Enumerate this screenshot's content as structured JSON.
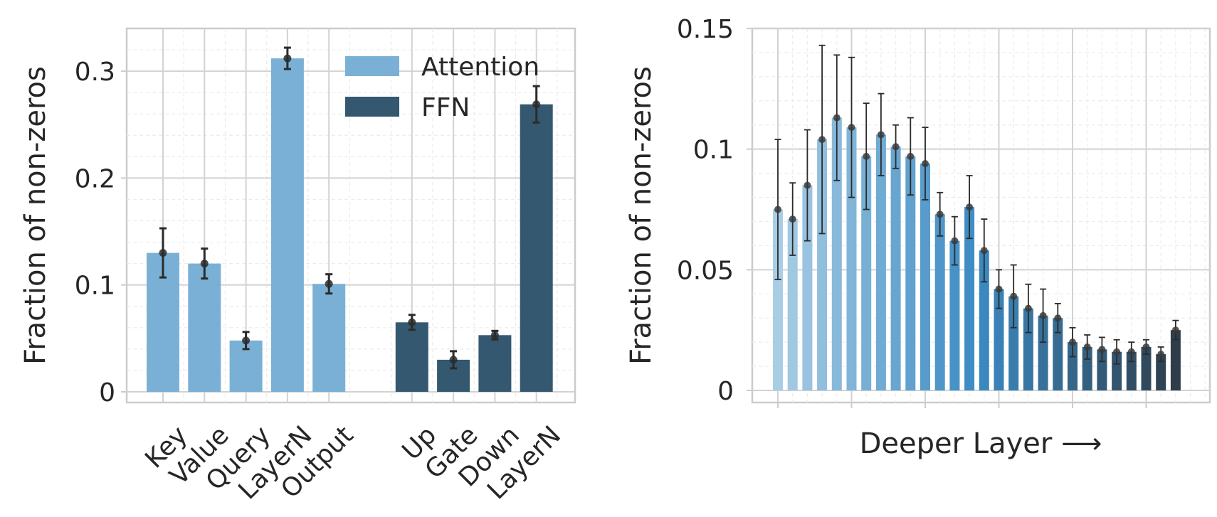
{
  "chart_data": [
    {
      "type": "bar",
      "ylabel": "Fraction of non-zeros",
      "ylim": [
        -0.01,
        0.34
      ],
      "yticks": [
        0,
        0.1,
        0.2,
        0.3
      ],
      "ytick_labels": [
        "0",
        "0.1",
        "0.2",
        "0.3"
      ],
      "grid": true,
      "legend_position": "top-right",
      "colors": {
        "Attention": "#7ab0d6",
        "FFN": "#34586f"
      },
      "series": [
        {
          "name": "Attention",
          "categories": [
            "Key",
            "Value",
            "Query",
            "LayerN",
            "Output"
          ],
          "values": [
            0.13,
            0.12,
            0.048,
            0.312,
            0.101
          ],
          "errors": [
            0.023,
            0.014,
            0.008,
            0.01,
            0.009
          ]
        },
        {
          "name": "FFN",
          "categories": [
            "Up",
            "Gate",
            "Down",
            "LayerN"
          ],
          "values": [
            0.065,
            0.03,
            0.053,
            0.269
          ],
          "errors": [
            0.007,
            0.008,
            0.004,
            0.017
          ]
        }
      ]
    },
    {
      "type": "bar",
      "xlabel": "Deeper Layer ⟶",
      "ylabel": "Fraction of non-zeros",
      "ylim": [
        -0.005,
        0.15
      ],
      "yticks": [
        0,
        0.05,
        0.1,
        0.15
      ],
      "ytick_labels": [
        "0",
        "0.05",
        "0.1",
        "0.15"
      ],
      "grid": true,
      "color_gradient": [
        "#a9cde5",
        "#3b8bc2",
        "#2f3d4b"
      ],
      "values": [
        0.075,
        0.071,
        0.085,
        0.104,
        0.113,
        0.109,
        0.097,
        0.106,
        0.101,
        0.097,
        0.094,
        0.073,
        0.062,
        0.076,
        0.058,
        0.042,
        0.039,
        0.034,
        0.031,
        0.03,
        0.02,
        0.018,
        0.017,
        0.016,
        0.016,
        0.018,
        0.015,
        0.025
      ],
      "errors": [
        0.029,
        0.015,
        0.023,
        0.039,
        0.026,
        0.029,
        0.022,
        0.017,
        0.009,
        0.016,
        0.015,
        0.009,
        0.01,
        0.013,
        0.013,
        0.008,
        0.013,
        0.01,
        0.011,
        0.006,
        0.006,
        0.005,
        0.005,
        0.005,
        0.004,
        0.003,
        0.003,
        0.004
      ]
    }
  ]
}
